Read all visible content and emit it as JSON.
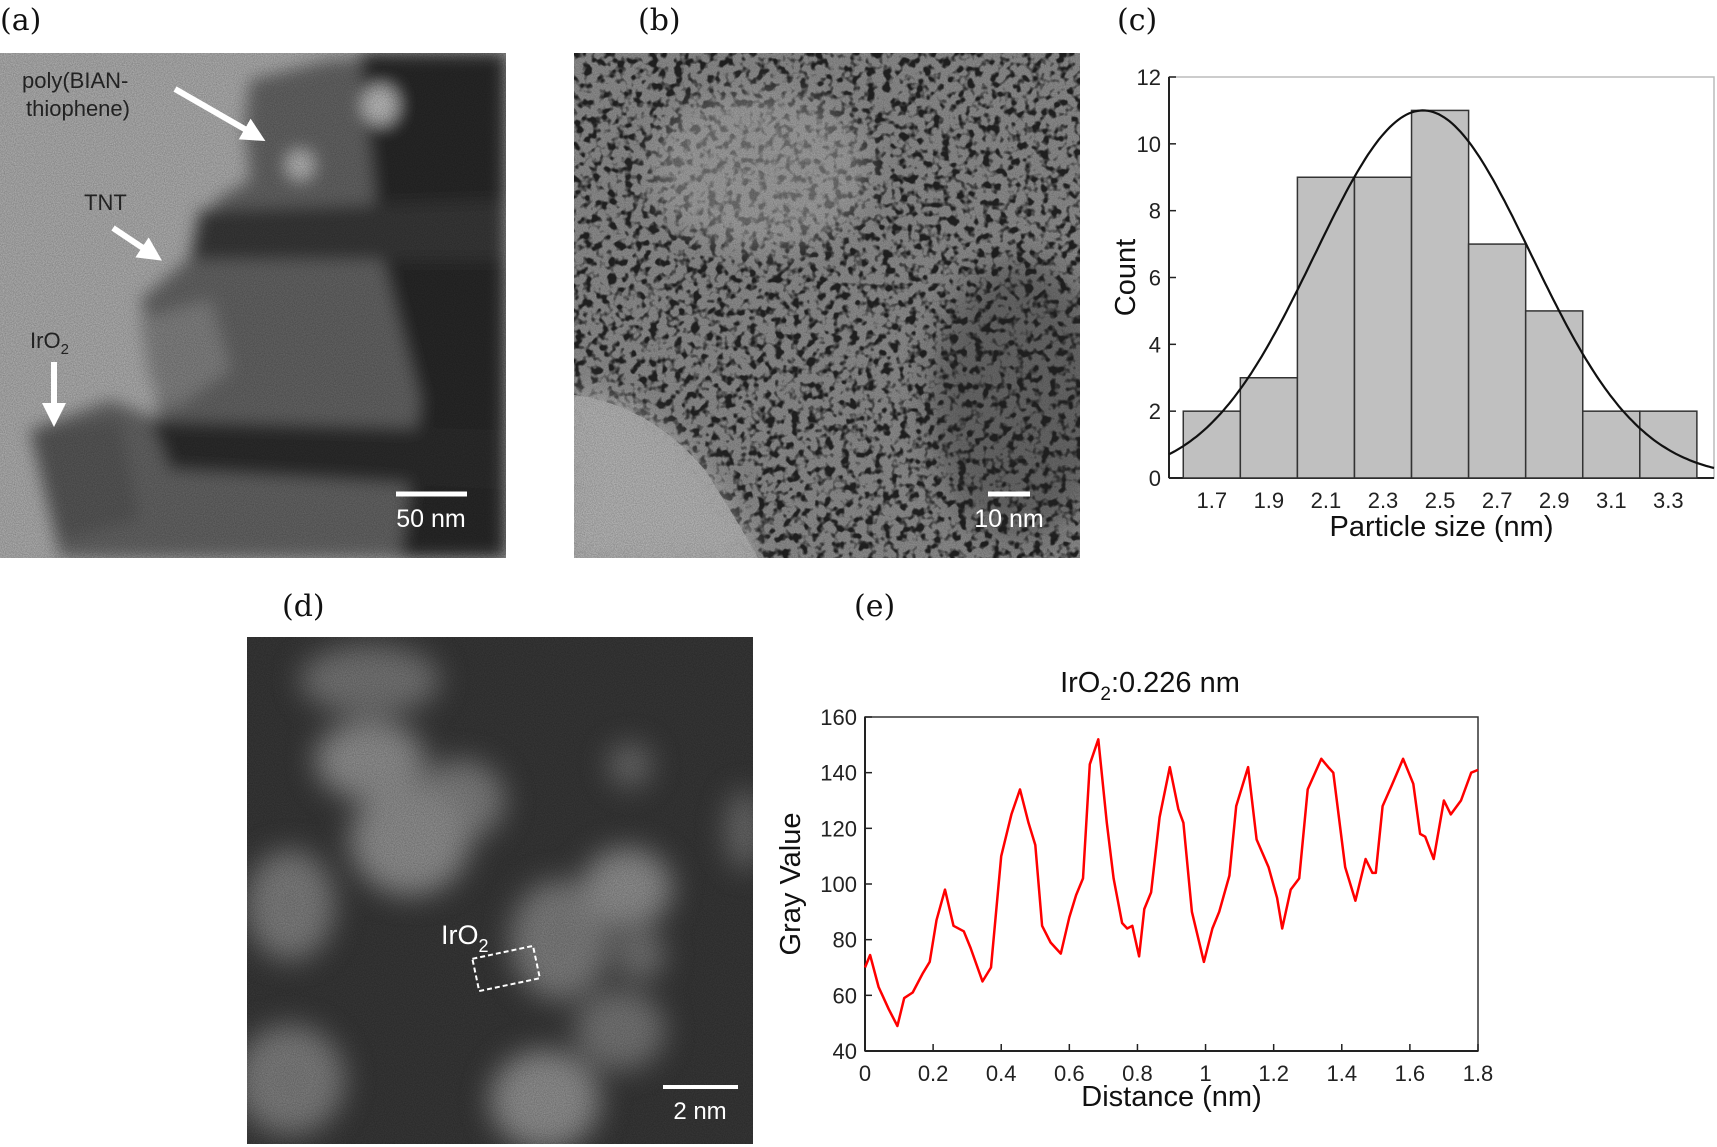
{
  "panels": {
    "a": {
      "label": "(a)",
      "annotations": {
        "poly_line1": "poly(BIAN-",
        "poly_line2": "thiophene)",
        "tnt": "TNT",
        "iro2_main": "IrO",
        "iro2_sub": "2"
      },
      "scale_bar": "50 nm"
    },
    "b": {
      "label": "(b)",
      "scale_bar": "10 nm"
    },
    "c": {
      "label": "(c)"
    },
    "d": {
      "label": "(d)",
      "annotation": {
        "main": "IrO",
        "sub": "2"
      },
      "scale_bar": "2 nm"
    },
    "e": {
      "label": "(e)",
      "title": {
        "main": "IrO",
        "sub": "2",
        "rest": ":0.226 nm"
      }
    }
  },
  "chart_data": [
    {
      "type": "bar",
      "panel": "c",
      "xlabel": "Particle size (nm)",
      "ylabel": "Count",
      "bin_edges": [
        1.6,
        1.8,
        2.0,
        2.2,
        2.4,
        2.6,
        2.8,
        3.0,
        3.2,
        3.4
      ],
      "values": [
        2,
        3,
        9,
        9,
        11,
        7,
        5,
        2,
        2
      ],
      "xticks": [
        1.7,
        1.9,
        2.1,
        2.3,
        2.5,
        2.7,
        2.9,
        3.1,
        3.3
      ],
      "xtick_labels": [
        "1.7",
        "1.9",
        "2.1",
        "2.3",
        "2.5",
        "2.7",
        "2.9",
        "3.1",
        "3.3"
      ],
      "yticks": [
        0,
        2,
        4,
        6,
        8,
        10,
        12
      ],
      "ytick_labels": [
        "0",
        "2",
        "4",
        "6",
        "8",
        "10",
        "12"
      ],
      "xlim": [
        1.55,
        3.46
      ],
      "ylim": [
        0,
        12
      ],
      "fit": {
        "type": "gaussian",
        "center": 2.44,
        "amplitude": 11,
        "sigma": 0.38
      },
      "bar_color": "#c0c0c0",
      "grid": false
    },
    {
      "type": "line",
      "panel": "e",
      "xlabel": "Distance (nm)",
      "ylabel": "Gray Value",
      "xlim": [
        0,
        1.8
      ],
      "ylim": [
        40,
        160
      ],
      "xticks": [
        0,
        0.2,
        0.4,
        0.6,
        0.8,
        1,
        1.2,
        1.4,
        1.6,
        1.8
      ],
      "xtick_labels": [
        "0",
        "0.2",
        "0.4",
        "0.6",
        "0.8",
        "1",
        "1.2",
        "1.4",
        "1.6",
        "1.8"
      ],
      "yticks": [
        40,
        60,
        80,
        100,
        120,
        140,
        160
      ],
      "ytick_labels": [
        "40",
        "60",
        "80",
        "100",
        "120",
        "140",
        "160"
      ],
      "grid": false,
      "color": "#ff0000",
      "x": [
        0,
        0.015,
        0.04,
        0.07,
        0.095,
        0.115,
        0.14,
        0.17,
        0.19,
        0.21,
        0.235,
        0.26,
        0.29,
        0.31,
        0.345,
        0.37,
        0.4,
        0.43,
        0.455,
        0.48,
        0.5,
        0.52,
        0.545,
        0.575,
        0.6,
        0.62,
        0.64,
        0.66,
        0.685,
        0.71,
        0.73,
        0.755,
        0.77,
        0.785,
        0.805,
        0.82,
        0.84,
        0.865,
        0.895,
        0.92,
        0.935,
        0.96,
        0.995,
        1.02,
        1.04,
        1.07,
        1.09,
        1.125,
        1.15,
        1.185,
        1.21,
        1.225,
        1.25,
        1.275,
        1.3,
        1.34,
        1.36,
        1.375,
        1.41,
        1.44,
        1.47,
        1.49,
        1.5,
        1.52,
        1.545,
        1.58,
        1.61,
        1.63,
        1.645,
        1.67,
        1.7,
        1.72,
        1.75,
        1.78,
        1.8
      ],
      "y": [
        70,
        74.5,
        63,
        55,
        49,
        59,
        61,
        68,
        72,
        87,
        98,
        85,
        83,
        77,
        65,
        70,
        110,
        125,
        134,
        122,
        114,
        85,
        79,
        75,
        88,
        96,
        102,
        143,
        152,
        122,
        102,
        86,
        84,
        85,
        74,
        91,
        97,
        124,
        142,
        127,
        122,
        90,
        72,
        84,
        90,
        103,
        128,
        142,
        116,
        106,
        95,
        84,
        98,
        102,
        134,
        145,
        142,
        140,
        106,
        94,
        109,
        104,
        104,
        128,
        135,
        145,
        136,
        118,
        117,
        109,
        130,
        125,
        130,
        140,
        141
      ]
    }
  ]
}
